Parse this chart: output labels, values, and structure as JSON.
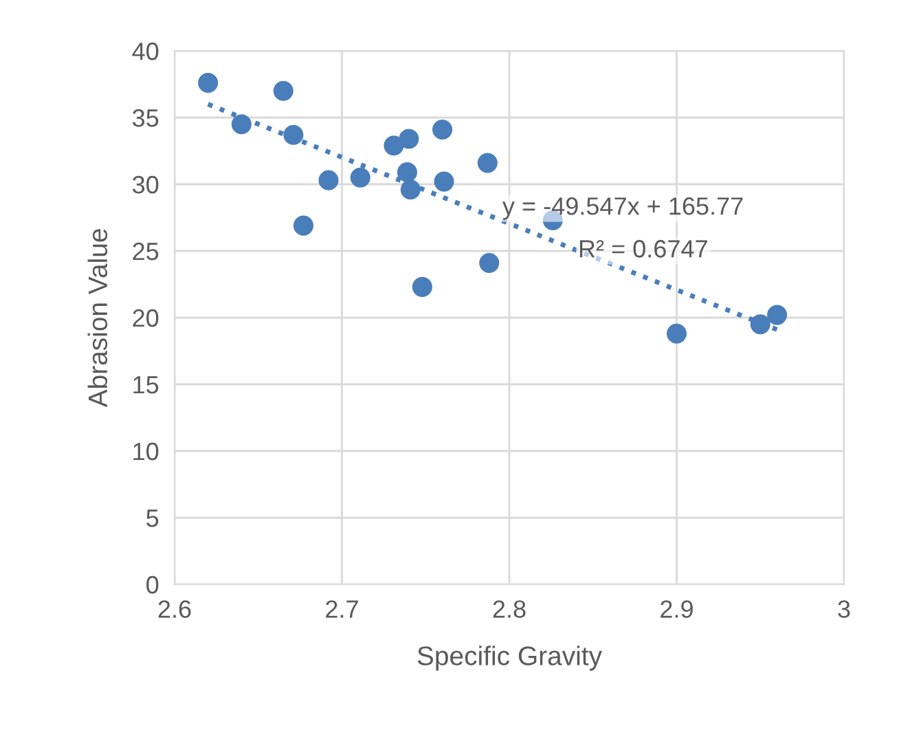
{
  "chart_data": {
    "type": "scatter",
    "xlabel": "Specific Gravity",
    "ylabel": "Abrasion Value",
    "xlim": [
      2.6,
      3
    ],
    "ylim": [
      0,
      40
    ],
    "xticks": [
      2.6,
      2.7,
      2.8,
      2.9,
      {
        "value": 3,
        "label": "3"
      }
    ],
    "yticks": [
      0,
      5,
      10,
      15,
      20,
      25,
      30,
      35,
      40
    ],
    "grid": true,
    "legend": false,
    "series": [
      {
        "color": "#4a7ebb",
        "marker": "circle",
        "x": [
          2.62,
          2.64,
          2.665,
          2.671,
          2.677,
          2.692,
          2.711,
          2.731,
          2.74,
          2.739,
          2.741,
          2.748,
          2.76,
          2.761,
          2.787,
          2.788,
          2.826,
          2.9,
          2.95,
          2.96
        ],
        "values": [
          37.6,
          34.5,
          37.0,
          33.7,
          26.9,
          30.3,
          30.5,
          32.9,
          33.4,
          30.9,
          29.6,
          22.3,
          34.1,
          30.2,
          31.6,
          24.1,
          27.3,
          18.8,
          19.5,
          20.2
        ]
      },
      {
        "type": "line",
        "color": "#4a7ebb",
        "line_style": "dotted",
        "marker": "none",
        "x": [
          2.62,
          2.96
        ],
        "values": [
          36.0,
          19.1
        ]
      }
    ],
    "annotations": [
      "y = -49.547x + 165.77",
      "R² = 0.6747"
    ]
  }
}
